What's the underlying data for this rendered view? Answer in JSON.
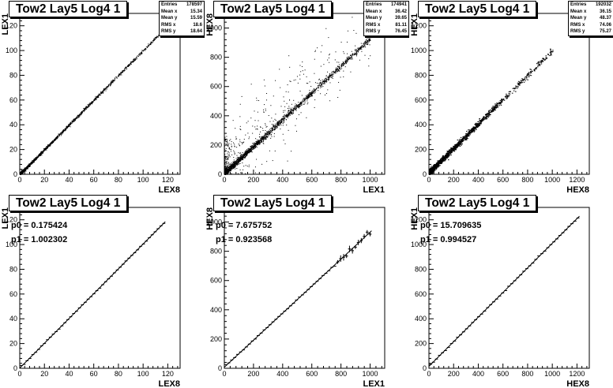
{
  "chart_data": [
    {
      "type": "scatter",
      "title": "Tow2 Lay5 Log4 1",
      "xlabel": "LEX8",
      "ylabel": "LEX1",
      "xlim": [
        0,
        130
      ],
      "ylim": [
        0,
        130
      ],
      "xticks": [
        0,
        20,
        40,
        60,
        80,
        100,
        120
      ],
      "yticks": [
        0,
        20,
        40,
        60,
        80,
        100,
        120
      ],
      "stats": [
        [
          "Entries",
          "178597"
        ],
        [
          "Mean x",
          "15.34"
        ],
        [
          "Mean y",
          "15.59"
        ],
        [
          "RMS x",
          "18.6"
        ],
        [
          "RMS y",
          "18.64"
        ]
      ],
      "trend": {
        "p0": 0.2,
        "p1": 1.0,
        "xmax": 125
      },
      "spread": 1
    },
    {
      "type": "scatter",
      "title": "Tow2 Lay5 Log4 1",
      "xlabel": "LEX1",
      "ylabel": "HEX8",
      "xlim": [
        0,
        1100
      ],
      "ylim": [
        0,
        1100
      ],
      "xticks": [
        0,
        200,
        400,
        600,
        800,
        1000
      ],
      "yticks": [
        0,
        200,
        400,
        600,
        800,
        1000
      ],
      "stats": [
        [
          "Entries",
          "174941"
        ],
        [
          "Mean x",
          "36.42"
        ],
        [
          "Mean y",
          "39.65"
        ],
        [
          "RMS x",
          "81.11"
        ],
        [
          "RMS y",
          "76.45"
        ]
      ],
      "trend": {
        "p0": 7.7,
        "p1": 0.92,
        "xmax": 1000
      },
      "spread": 3
    },
    {
      "type": "scatter",
      "title": "Tow2 Lay5 Log4 1",
      "xlabel": "HEX8",
      "ylabel": "HEX1",
      "xlim": [
        0,
        1300
      ],
      "ylim": [
        0,
        1300
      ],
      "xticks": [
        0,
        200,
        400,
        600,
        800,
        1000,
        1200
      ],
      "yticks": [
        0,
        200,
        400,
        600,
        800,
        1000,
        1200
      ],
      "stats": [
        [
          "Entries",
          "192032"
        ],
        [
          "Mean x",
          "36.15"
        ],
        [
          "Mean y",
          "48.37"
        ],
        [
          "RMS x",
          "74.06"
        ],
        [
          "RMS y",
          "75.27"
        ]
      ],
      "trend": {
        "p0": 15.7,
        "p1": 0.99,
        "xmax": 1000
      },
      "spread": 2
    },
    {
      "type": "line",
      "title": "Tow2 Lay5 Log4 1",
      "xlabel": "LEX8",
      "ylabel": "LEX1",
      "xlim": [
        0,
        130
      ],
      "ylim": [
        0,
        130
      ],
      "xticks": [
        0,
        20,
        40,
        60,
        80,
        100,
        120
      ],
      "yticks": [
        0,
        20,
        40,
        60,
        80,
        100,
        120
      ],
      "fit": {
        "p0_label": "p0 = 0.175424",
        "p1_label": "p1 = 1.002302",
        "p0": 0.175424,
        "p1": 1.002302,
        "xmax": 118
      }
    },
    {
      "type": "line",
      "title": "Tow2 Lay5 Log4 1",
      "xlabel": "LEX1",
      "ylabel": "HEX8",
      "xlim": [
        0,
        1100
      ],
      "ylim": [
        0,
        1100
      ],
      "xticks": [
        0,
        200,
        400,
        600,
        800,
        1000
      ],
      "yticks": [
        0,
        200,
        400,
        600,
        800,
        1000
      ],
      "fit": {
        "p0_label": "p0 = 7.675752",
        "p1_label": "p1 = 0.923568",
        "p0": 7.675752,
        "p1": 0.923568,
        "xmax": 1010
      }
    },
    {
      "type": "line",
      "title": "Tow2 Lay5 Log4 1",
      "xlabel": "HEX8",
      "ylabel": "HEX1",
      "xlim": [
        0,
        1300
      ],
      "ylim": [
        0,
        1300
      ],
      "xticks": [
        0,
        200,
        400,
        600,
        800,
        1000,
        1200
      ],
      "yticks": [
        0,
        200,
        400,
        600,
        800,
        1000,
        1200
      ],
      "fit": {
        "p0_label": "p0 = 15.709635",
        "p1_label": "p1 = 0.994527",
        "p0": 15.709635,
        "p1": 0.994527,
        "xmax": 1220
      }
    }
  ]
}
